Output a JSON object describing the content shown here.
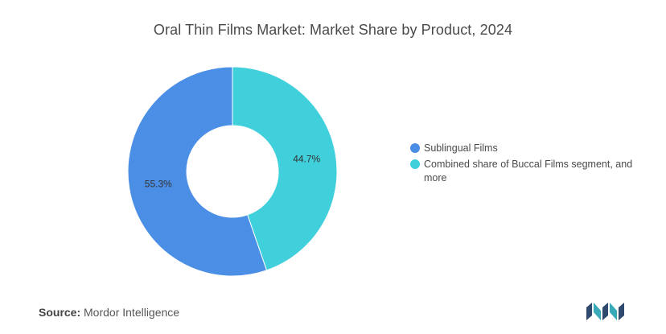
{
  "header": {
    "title": "Oral Thin Films Market: Market Share by Product, 2024"
  },
  "chart_data": {
    "type": "pie",
    "variant": "donut",
    "title": "Oral Thin Films Market: Market Share by Product, 2024",
    "series": [
      {
        "name": "Sublingual Films",
        "value": 55.3,
        "label": "55.3%",
        "color": "#4a8ee6"
      },
      {
        "name": "Combined share of Buccal Films segment, and more",
        "value": 44.7,
        "label": "44.7%",
        "color": "#40d0dc"
      }
    ],
    "legend_position": "right"
  },
  "footer": {
    "source_key": "Source:",
    "source_value": "Mordor Intelligence",
    "logo_icon": "mordor-intelligence-logo-icon"
  }
}
